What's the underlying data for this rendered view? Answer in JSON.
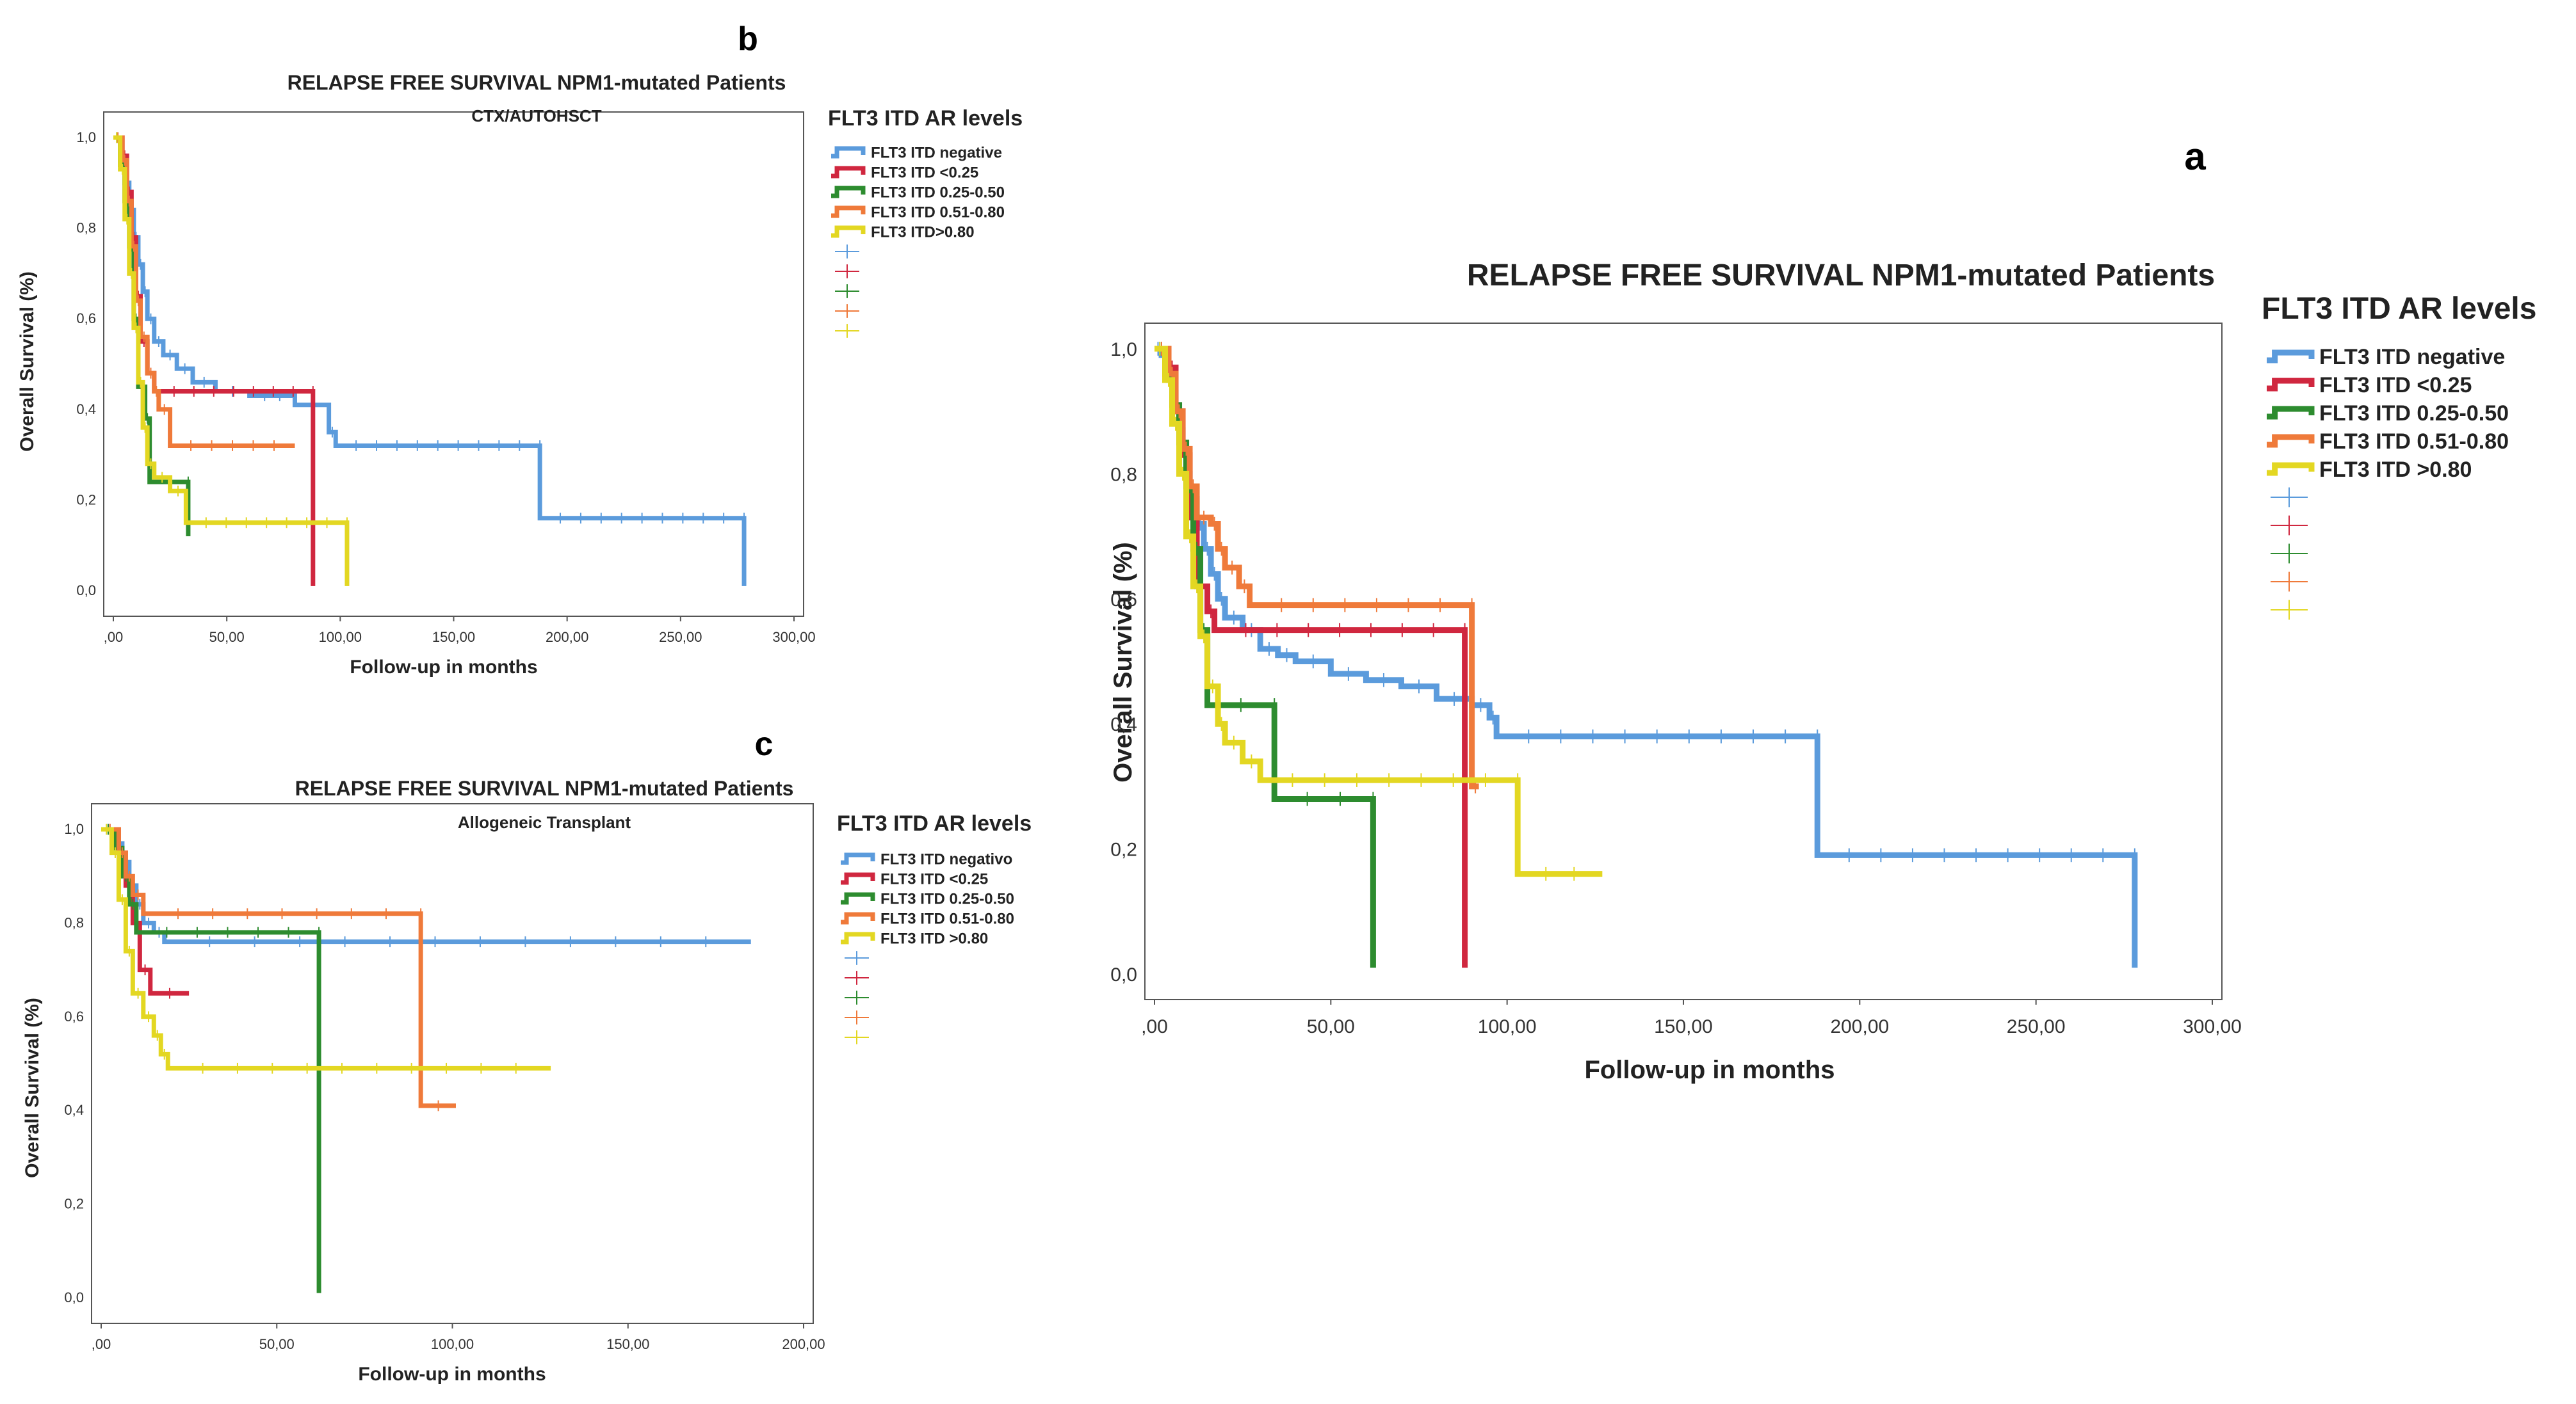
{
  "chart_data": [
    {
      "id": "a",
      "panel_label": "a",
      "type": "line",
      "step": true,
      "title": "RELAPSE FREE SURVIVAL NPM1-mutated Patients",
      "subtitle": "",
      "xlabel": "Follow-up in months",
      "ylabel": "Overall Survival (%)",
      "xlim": [
        0,
        300
      ],
      "ylim": [
        0,
        1
      ],
      "x_ticks": [
        0,
        50,
        100,
        150,
        200,
        250,
        300
      ],
      "x_tick_labels": [
        ",00",
        "50,00",
        "100,00",
        "150,00",
        "200,00",
        "250,00",
        "300,00"
      ],
      "y_ticks": [
        0,
        0.2,
        0.4,
        0.6,
        0.8,
        1.0
      ],
      "y_tick_labels": [
        "0,0",
        "0,2",
        "0,4",
        "0,6",
        "0,8",
        "1,0"
      ],
      "legend_title": "FLT3 ITD AR levels",
      "legend_position": "right",
      "series": [
        {
          "name": "FLT3 ITD negative",
          "color": "#5b9bdc",
          "points": [
            [
              0,
              1.0
            ],
            [
              2,
              0.99
            ],
            [
              3,
              0.97
            ],
            [
              4,
              0.95
            ],
            [
              5,
              0.93
            ],
            [
              6,
              0.9
            ],
            [
              7,
              0.87
            ],
            [
              8,
              0.84
            ],
            [
              9,
              0.8
            ],
            [
              10,
              0.76
            ],
            [
              12,
              0.72
            ],
            [
              14,
              0.68
            ],
            [
              16,
              0.64
            ],
            [
              18,
              0.6
            ],
            [
              20,
              0.57
            ],
            [
              25,
              0.55
            ],
            [
              30,
              0.52
            ],
            [
              35,
              0.51
            ],
            [
              40,
              0.5
            ],
            [
              50,
              0.48
            ],
            [
              60,
              0.47
            ],
            [
              70,
              0.46
            ],
            [
              80,
              0.44
            ],
            [
              90,
              0.43
            ],
            [
              95,
              0.41
            ],
            [
              97,
              0.38
            ],
            [
              188,
              0.38
            ],
            [
              188,
              0.19
            ],
            [
              278,
              0.19
            ],
            [
              278,
              0.01
            ]
          ]
        },
        {
          "name": "FLT3 ITD <0.25",
          "color": "#d0273f",
          "points": [
            [
              0,
              1.0
            ],
            [
              4,
              0.97
            ],
            [
              6,
              0.9
            ],
            [
              8,
              0.83
            ],
            [
              10,
              0.73
            ],
            [
              12,
              0.62
            ],
            [
              15,
              0.58
            ],
            [
              17,
              0.55
            ],
            [
              88,
              0.55
            ],
            [
              88,
              0.01
            ]
          ]
        },
        {
          "name": "FLT3 ITD 0.25-0.50",
          "color": "#2d8c2f",
          "points": [
            [
              0,
              1.0
            ],
            [
              3,
              0.96
            ],
            [
              5,
              0.91
            ],
            [
              7,
              0.85
            ],
            [
              9,
              0.78
            ],
            [
              11,
              0.68
            ],
            [
              13,
              0.55
            ],
            [
              15,
              0.43
            ],
            [
              34,
              0.43
            ],
            [
              34,
              0.28
            ],
            [
              62,
              0.28
            ],
            [
              62,
              0.01
            ]
          ]
        },
        {
          "name": "FLT3 ITD 0.51-0.80",
          "color": "#ef7a3a",
          "points": [
            [
              0,
              1.0
            ],
            [
              4,
              0.96
            ],
            [
              6,
              0.9
            ],
            [
              8,
              0.84
            ],
            [
              10,
              0.78
            ],
            [
              12,
              0.73
            ],
            [
              16,
              0.72
            ],
            [
              18,
              0.68
            ],
            [
              20,
              0.65
            ],
            [
              24,
              0.62
            ],
            [
              27,
              0.59
            ],
            [
              90,
              0.59
            ],
            [
              90,
              0.3
            ],
            [
              92,
              0.3
            ]
          ]
        },
        {
          "name": "FLT3 ITD >0.80",
          "color": "#e3d722",
          "points": [
            [
              0,
              1.0
            ],
            [
              3,
              0.95
            ],
            [
              5,
              0.88
            ],
            [
              7,
              0.8
            ],
            [
              9,
              0.7
            ],
            [
              11,
              0.62
            ],
            [
              13,
              0.54
            ],
            [
              15,
              0.46
            ],
            [
              18,
              0.4
            ],
            [
              20,
              0.37
            ],
            [
              25,
              0.34
            ],
            [
              30,
              0.31
            ],
            [
              103,
              0.31
            ],
            [
              103,
              0.16
            ],
            [
              127,
              0.16
            ]
          ]
        }
      ]
    },
    {
      "id": "b",
      "panel_label": "b",
      "type": "line",
      "step": true,
      "title": "RELAPSE FREE SURVIVAL NPM1-mutated Patients",
      "subtitle": "CTX/AUTOHSCT",
      "xlabel": "Follow-up in months",
      "ylabel": "Overall Survival (%)",
      "xlim": [
        0,
        300
      ],
      "ylim": [
        0,
        1
      ],
      "x_ticks": [
        0,
        50,
        100,
        150,
        200,
        250,
        300
      ],
      "x_tick_labels": [
        ",00",
        "50,00",
        "100,00",
        "150,00",
        "200,00",
        "250,00",
        "300,00"
      ],
      "y_ticks": [
        0,
        0.2,
        0.4,
        0.6,
        0.8,
        1.0
      ],
      "y_tick_labels": [
        "0,0",
        "0,2",
        "0,4",
        "0,6",
        "0,8",
        "1,0"
      ],
      "legend_title": "FLT3 ITD AR levels",
      "legend_position": "right",
      "series": [
        {
          "name": "FLT3 ITD negative",
          "color": "#5b9bdc",
          "points": [
            [
              0,
              1.0
            ],
            [
              3,
              0.95
            ],
            [
              5,
              0.9
            ],
            [
              7,
              0.84
            ],
            [
              9,
              0.78
            ],
            [
              11,
              0.72
            ],
            [
              13,
              0.66
            ],
            [
              15,
              0.6
            ],
            [
              18,
              0.55
            ],
            [
              22,
              0.52
            ],
            [
              28,
              0.49
            ],
            [
              35,
              0.46
            ],
            [
              45,
              0.44
            ],
            [
              60,
              0.43
            ],
            [
              80,
              0.41
            ],
            [
              95,
              0.35
            ],
            [
              98,
              0.32
            ],
            [
              188,
              0.32
            ],
            [
              188,
              0.16
            ],
            [
              278,
              0.16
            ],
            [
              278,
              0.01
            ]
          ]
        },
        {
          "name": "FLT3 ITD <0.25",
          "color": "#d0273f",
          "points": [
            [
              0,
              1.0
            ],
            [
              4,
              0.96
            ],
            [
              6,
              0.88
            ],
            [
              8,
              0.78
            ],
            [
              10,
              0.65
            ],
            [
              12,
              0.55
            ],
            [
              15,
              0.48
            ],
            [
              18,
              0.44
            ],
            [
              88,
              0.44
            ],
            [
              88,
              0.01
            ]
          ]
        },
        {
          "name": "FLT3 ITD 0.25-0.50",
          "color": "#2d8c2f",
          "points": [
            [
              0,
              1.0
            ],
            [
              3,
              0.94
            ],
            [
              5,
              0.86
            ],
            [
              7,
              0.76
            ],
            [
              9,
              0.6
            ],
            [
              11,
              0.45
            ],
            [
              14,
              0.38
            ],
            [
              16,
              0.24
            ],
            [
              33,
              0.24
            ],
            [
              33,
              0.12
            ]
          ]
        },
        {
          "name": "FLT3 ITD 0.51-0.80",
          "color": "#ef7a3a",
          "points": [
            [
              0,
              1.0
            ],
            [
              4,
              0.95
            ],
            [
              6,
              0.86
            ],
            [
              8,
              0.76
            ],
            [
              10,
              0.64
            ],
            [
              12,
              0.56
            ],
            [
              15,
              0.48
            ],
            [
              18,
              0.44
            ],
            [
              20,
              0.4
            ],
            [
              25,
              0.32
            ],
            [
              80,
              0.32
            ]
          ]
        },
        {
          "name": "FLT3 ITD>0.80",
          "color": "#e3d722",
          "points": [
            [
              0,
              1.0
            ],
            [
              3,
              0.93
            ],
            [
              5,
              0.82
            ],
            [
              7,
              0.7
            ],
            [
              9,
              0.58
            ],
            [
              11,
              0.46
            ],
            [
              13,
              0.36
            ],
            [
              15,
              0.28
            ],
            [
              18,
              0.25
            ],
            [
              25,
              0.22
            ],
            [
              32,
              0.15
            ],
            [
              103,
              0.15
            ],
            [
              103,
              0.01
            ]
          ]
        }
      ]
    },
    {
      "id": "c",
      "panel_label": "c",
      "type": "line",
      "step": true,
      "title": "RELAPSE FREE SURVIVAL NPM1-mutated Patients",
      "subtitle": "Allogeneic Transplant",
      "xlabel": "Follow-up in months",
      "ylabel": "Overall Survival (%)",
      "xlim": [
        0,
        200
      ],
      "ylim": [
        0,
        1
      ],
      "x_ticks": [
        0,
        50,
        100,
        150,
        200
      ],
      "x_tick_labels": [
        ",00",
        "50,00",
        "100,00",
        "150,00",
        "200,00"
      ],
      "y_ticks": [
        0,
        0.2,
        0.4,
        0.6,
        0.8,
        1.0
      ],
      "y_tick_labels": [
        "0,0",
        "0,2",
        "0,4",
        "0,6",
        "0,8",
        "1,0"
      ],
      "legend_title": "FLT3 ITD AR levels",
      "legend_position": "right",
      "series": [
        {
          "name": "FLT3 ITD negativo",
          "color": "#5b9bdc",
          "points": [
            [
              0,
              1.0
            ],
            [
              4,
              0.97
            ],
            [
              6,
              0.93
            ],
            [
              8,
              0.88
            ],
            [
              10,
              0.84
            ],
            [
              12,
              0.8
            ],
            [
              15,
              0.78
            ],
            [
              18,
              0.76
            ],
            [
              185,
              0.76
            ]
          ]
        },
        {
          "name": "FLT3 ITD <0.25",
          "color": "#d0273f",
          "points": [
            [
              0,
              1.0
            ],
            [
              5,
              0.95
            ],
            [
              7,
              0.88
            ],
            [
              9,
              0.8
            ],
            [
              11,
              0.7
            ],
            [
              14,
              0.65
            ],
            [
              25,
              0.65
            ]
          ]
        },
        {
          "name": "FLT3 ITD 0.25-0.50",
          "color": "#2d8c2f",
          "points": [
            [
              0,
              1.0
            ],
            [
              4,
              0.96
            ],
            [
              6,
              0.9
            ],
            [
              8,
              0.84
            ],
            [
              10,
              0.78
            ],
            [
              62,
              0.78
            ],
            [
              62,
              0.01
            ]
          ]
        },
        {
          "name": "FLT3 ITD 0.51-0.80",
          "color": "#ef7a3a",
          "points": [
            [
              0,
              1.0
            ],
            [
              5,
              0.95
            ],
            [
              7,
              0.9
            ],
            [
              9,
              0.86
            ],
            [
              12,
              0.82
            ],
            [
              91,
              0.82
            ],
            [
              91,
              0.41
            ],
            [
              101,
              0.41
            ]
          ]
        },
        {
          "name": "FLT3 ITD >0.80",
          "color": "#e3d722",
          "points": [
            [
              0,
              1.0
            ],
            [
              3,
              0.95
            ],
            [
              5,
              0.85
            ],
            [
              7,
              0.74
            ],
            [
              9,
              0.65
            ],
            [
              12,
              0.6
            ],
            [
              15,
              0.56
            ],
            [
              17,
              0.52
            ],
            [
              19,
              0.49
            ],
            [
              128,
              0.49
            ]
          ]
        }
      ]
    }
  ]
}
